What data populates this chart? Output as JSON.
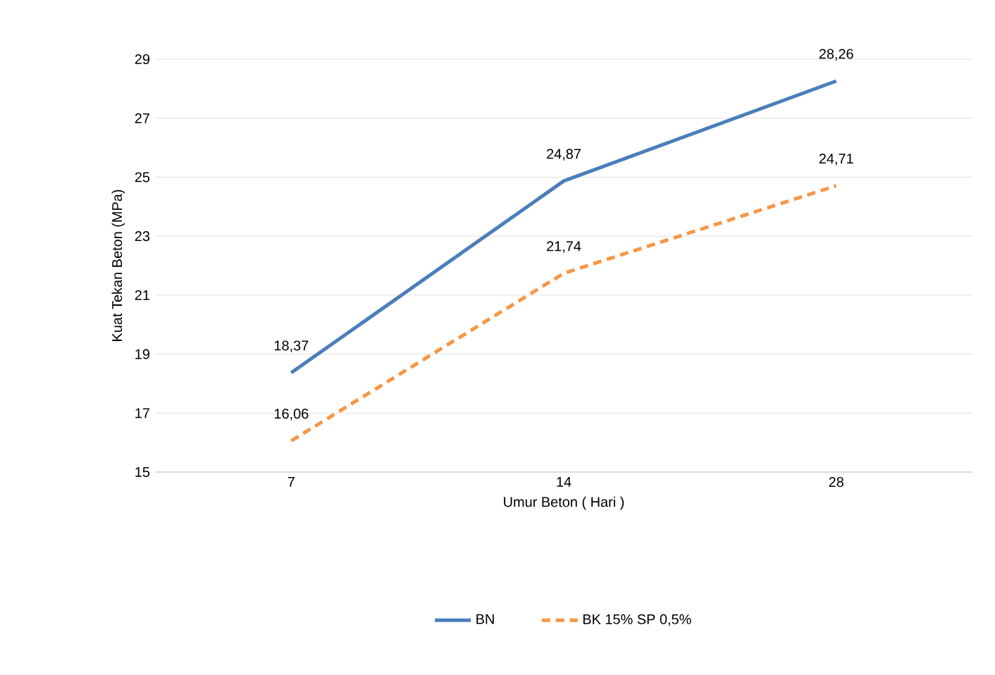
{
  "chart_data": {
    "type": "line",
    "xlabel": "Umur Beton ( Hari )",
    "ylabel": "Kuat Tekan Beton (MPa)",
    "categories": [
      "7",
      "14",
      "28"
    ],
    "series": [
      {
        "name": "BN",
        "color": "#4a7ebb",
        "line_style": "solid",
        "values": [
          18.37,
          24.87,
          28.26
        ],
        "value_labels": [
          "18,37",
          "24,87",
          "28,26"
        ]
      },
      {
        "name": "BK 15% SP 0,5%",
        "color": "#f79646",
        "line_style": "dashed",
        "values": [
          16.06,
          21.74,
          24.71
        ],
        "value_labels": [
          "16,06",
          "21,74",
          "24,71"
        ]
      }
    ],
    "ylim": [
      15,
      29
    ],
    "yticks": [
      15,
      17,
      19,
      21,
      23,
      25,
      27,
      29
    ],
    "grid": "y",
    "legend": "bottom"
  }
}
